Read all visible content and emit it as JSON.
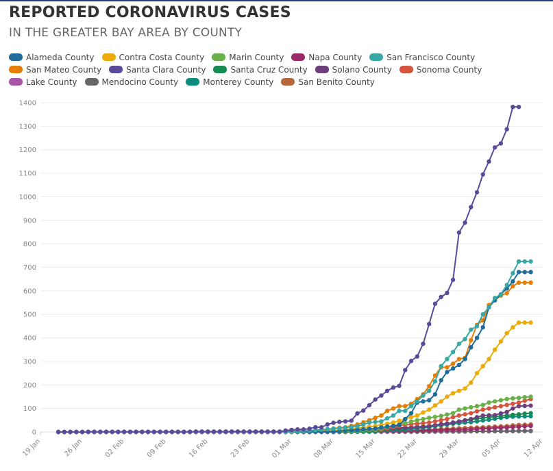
{
  "header": {
    "title": "REPORTED CORONAVIRUS CASES",
    "subtitle": "IN THE GREATER BAY AREA BY COUNTY"
  },
  "chart_data": {
    "type": "line",
    "title": "REPORTED CORONAVIRUS CASES",
    "subtitle": "IN THE GREATER BAY AREA BY COUNTY",
    "xlabel": "",
    "ylabel": "",
    "x_start": "2020-01-22",
    "x_end": "2020-04-10",
    "xlim": [
      "2020-01-19",
      "2020-04-12"
    ],
    "ylim": [
      0,
      1400
    ],
    "grid": true,
    "legend": "top",
    "x_ticks": [
      "19 Jan",
      "26 Jan",
      "02 Feb",
      "09 Feb",
      "16 Feb",
      "23 Feb",
      "01 Mar",
      "08 Mar",
      "15 Mar",
      "22 Mar",
      "29 Mar",
      "05 Apr",
      "12 Apr"
    ],
    "y_ticks": [
      0,
      100,
      200,
      300,
      400,
      500,
      600,
      700,
      800,
      900,
      1000,
      1100,
      1200,
      1300,
      1400
    ],
    "series": [
      {
        "name": "Alameda County",
        "color": "#1f6b99",
        "points": {
          "2020-03-01": 0,
          "2020-03-08": 2,
          "2020-03-15": 15,
          "2020-03-19": 30,
          "2020-03-21": 80,
          "2020-03-22": 125,
          "2020-03-23": 130,
          "2020-03-24": 135,
          "2020-03-25": 160,
          "2020-03-26": 220,
          "2020-03-27": 255,
          "2020-03-28": 270,
          "2020-03-29": 285,
          "2020-03-30": 310,
          "2020-03-31": 360,
          "2020-04-01": 400,
          "2020-04-02": 445,
          "2020-04-03": 530,
          "2020-04-04": 560,
          "2020-04-05": 585,
          "2020-04-06": 610,
          "2020-04-07": 640,
          "2020-04-08": 680,
          "2020-04-09": 680,
          "2020-04-10": 680
        }
      },
      {
        "name": "Contra Costa County",
        "color": "#eaab0b",
        "points": {
          "2020-03-01": 0,
          "2020-03-05": 2,
          "2020-03-10": 10,
          "2020-03-15": 25,
          "2020-03-18": 40,
          "2020-03-20": 55,
          "2020-03-22": 70,
          "2020-03-24": 95,
          "2020-03-26": 130,
          "2020-03-27": 150,
          "2020-03-28": 165,
          "2020-03-29": 175,
          "2020-03-30": 185,
          "2020-03-31": 210,
          "2020-04-01": 250,
          "2020-04-02": 280,
          "2020-04-03": 310,
          "2020-04-04": 350,
          "2020-04-05": 385,
          "2020-04-06": 420,
          "2020-04-07": 445,
          "2020-04-08": 465,
          "2020-04-09": 465,
          "2020-04-10": 465
        }
      },
      {
        "name": "Marin County",
        "color": "#6aaf49",
        "points": {
          "2020-03-01": 0,
          "2020-03-10": 3,
          "2020-03-15": 10,
          "2020-03-18": 25,
          "2020-03-20": 38,
          "2020-03-22": 50,
          "2020-03-24": 60,
          "2020-03-26": 68,
          "2020-03-28": 80,
          "2020-03-29": 95,
          "2020-03-30": 100,
          "2020-03-31": 105,
          "2020-04-01": 110,
          "2020-04-02": 115,
          "2020-04-03": 125,
          "2020-04-04": 130,
          "2020-04-05": 135,
          "2020-04-06": 140,
          "2020-04-07": 143,
          "2020-04-08": 145,
          "2020-04-09": 148,
          "2020-04-10": 150
        }
      },
      {
        "name": "Napa County",
        "color": "#9b2b6b",
        "points": {
          "2020-03-01": 0,
          "2020-03-15": 2,
          "2020-03-20": 4,
          "2020-03-25": 8,
          "2020-03-30": 10,
          "2020-04-05": 18,
          "2020-04-08": 22,
          "2020-04-10": 26
        }
      },
      {
        "name": "San Francisco County",
        "color": "#39a8a4",
        "points": {
          "2020-03-01": 0,
          "2020-03-05": 8,
          "2020-03-08": 14,
          "2020-03-10": 18,
          "2020-03-12": 24,
          "2020-03-14": 40,
          "2020-03-16": 45,
          "2020-03-17": 58,
          "2020-03-18": 70,
          "2020-03-19": 90,
          "2020-03-20": 90,
          "2020-03-21": 110,
          "2020-03-22": 130,
          "2020-03-23": 155,
          "2020-03-24": 175,
          "2020-03-25": 215,
          "2020-03-26": 280,
          "2020-03-27": 310,
          "2020-03-28": 340,
          "2020-03-29": 375,
          "2020-03-30": 395,
          "2020-03-31": 435,
          "2020-04-01": 450,
          "2020-04-02": 500,
          "2020-04-03": 530,
          "2020-04-04": 570,
          "2020-04-05": 585,
          "2020-04-06": 625,
          "2020-04-07": 675,
          "2020-04-08": 725,
          "2020-04-09": 725,
          "2020-04-10": 725
        }
      },
      {
        "name": "San Mateo County",
        "color": "#e37e07",
        "points": {
          "2020-03-01": 0,
          "2020-03-03": 2,
          "2020-03-06": 9,
          "2020-03-08": 15,
          "2020-03-10": 20,
          "2020-03-12": 32,
          "2020-03-14": 50,
          "2020-03-16": 70,
          "2020-03-17": 90,
          "2020-03-18": 100,
          "2020-03-19": 110,
          "2020-03-20": 110,
          "2020-03-21": 120,
          "2020-03-22": 140,
          "2020-03-23": 160,
          "2020-03-24": 195,
          "2020-03-25": 240,
          "2020-03-26": 275,
          "2020-03-27": 275,
          "2020-03-28": 290,
          "2020-03-29": 310,
          "2020-03-30": 315,
          "2020-03-31": 390,
          "2020-04-01": 455,
          "2020-04-02": 475,
          "2020-04-03": 540,
          "2020-04-04": 560,
          "2020-04-05": 580,
          "2020-04-06": 590,
          "2020-04-07": 620,
          "2020-04-08": 635,
          "2020-04-09": 635,
          "2020-04-10": 635
        }
      },
      {
        "name": "Santa Clara County",
        "color": "#5b4a99",
        "points": {
          "2020-01-22": 0,
          "2020-01-31": 1,
          "2020-02-28": 2,
          "2020-03-01": 9,
          "2020-03-02": 11,
          "2020-03-03": 11,
          "2020-03-04": 14,
          "2020-03-05": 20,
          "2020-03-06": 20,
          "2020-03-07": 32,
          "2020-03-08": 39,
          "2020-03-09": 43,
          "2020-03-10": 45,
          "2020-03-11": 48,
          "2020-03-12": 79,
          "2020-03-13": 91,
          "2020-03-14": 114,
          "2020-03-15": 138,
          "2020-03-16": 155,
          "2020-03-17": 175,
          "2020-03-18": 189,
          "2020-03-19": 196,
          "2020-03-20": 263,
          "2020-03-21": 302,
          "2020-03-22": 321,
          "2020-03-23": 375,
          "2020-03-24": 459,
          "2020-03-25": 545,
          "2020-03-26": 574,
          "2020-03-27": 591,
          "2020-03-28": 647,
          "2020-03-29": 848,
          "2020-03-30": 890,
          "2020-03-31": 956,
          "2020-04-01": 1019,
          "2020-04-02": 1095,
          "2020-04-03": 1150,
          "2020-04-04": 1210,
          "2020-04-05": 1227,
          "2020-04-06": 1287,
          "2020-04-07": 1382,
          "2020-04-08": 1382
        }
      },
      {
        "name": "Santa Cruz County",
        "color": "#168a52",
        "points": {
          "2020-03-01": 0,
          "2020-03-15": 5,
          "2020-03-20": 15,
          "2020-03-24": 25,
          "2020-03-28": 40,
          "2020-03-31": 52,
          "2020-04-02": 60,
          "2020-04-04": 65,
          "2020-04-06": 70,
          "2020-04-08": 75,
          "2020-04-10": 80
        }
      },
      {
        "name": "Solano County",
        "color": "#6d3f7d",
        "points": {
          "2020-02-27": 0,
          "2020-03-01": 3,
          "2020-03-10": 8,
          "2020-03-18": 15,
          "2020-03-24": 25,
          "2020-03-28": 40,
          "2020-03-31": 55,
          "2020-04-02": 70,
          "2020-04-04": 72,
          "2020-04-06": 85,
          "2020-04-07": 100,
          "2020-04-08": 110,
          "2020-04-10": 112
        }
      },
      {
        "name": "Sonoma County",
        "color": "#d5543e",
        "points": {
          "2020-03-01": 0,
          "2020-03-10": 4,
          "2020-03-16": 10,
          "2020-03-20": 30,
          "2020-03-24": 40,
          "2020-03-27": 55,
          "2020-03-29": 70,
          "2020-03-31": 80,
          "2020-04-02": 95,
          "2020-04-04": 105,
          "2020-04-06": 115,
          "2020-04-08": 125,
          "2020-04-10": 140
        }
      },
      {
        "name": "Lake County",
        "color": "#a855a5",
        "points": {
          "2020-03-01": 0,
          "2020-03-25": 1,
          "2020-04-10": 5
        }
      },
      {
        "name": "Mendocino County",
        "color": "#666666",
        "points": {
          "2020-03-01": 0,
          "2020-03-20": 1,
          "2020-04-10": 4
        }
      },
      {
        "name": "Monterey County",
        "color": "#0d8b7d",
        "points": {
          "2020-03-01": 0,
          "2020-03-14": 2,
          "2020-03-20": 10,
          "2020-03-24": 20,
          "2020-03-28": 35,
          "2020-03-31": 42,
          "2020-04-03": 52,
          "2020-04-05": 60,
          "2020-04-07": 65,
          "2020-04-10": 67
        }
      },
      {
        "name": "San Benito County",
        "color": "#b5683c",
        "points": {
          "2020-01-22": 0,
          "2020-03-10": 0,
          "2020-03-20": 5,
          "2020-03-28": 15,
          "2020-04-02": 20,
          "2020-04-06": 25,
          "2020-04-08": 30,
          "2020-04-10": 32
        }
      }
    ]
  }
}
